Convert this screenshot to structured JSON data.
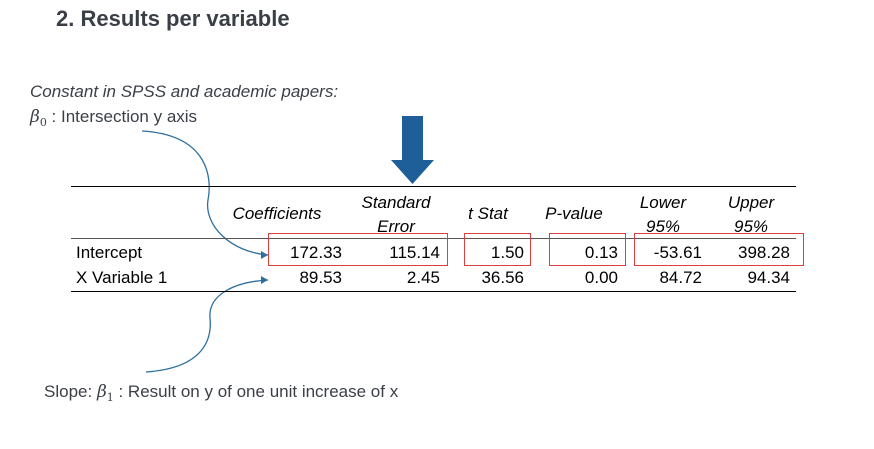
{
  "title": "2. Results per variable",
  "notes": {
    "constant": "Constant in SPSS and academic papers:",
    "beta0_symbol": "β",
    "beta0_sub": "0",
    "beta0_text": " : Intersection y axis",
    "slope_prefix": "Slope: ",
    "beta1_symbol": "β",
    "beta1_sub": "1",
    "slope_text": " : Result on y of one unit increase of x"
  },
  "table": {
    "headers": {
      "coefficients": "Coefficients",
      "std_error_1": "Standard",
      "std_error_2": "Error",
      "t_stat": "t Stat",
      "p_value": "P-value",
      "lower_1": "Lower",
      "lower_2": "95%",
      "upper_1": "Upper",
      "upper_2": "95%"
    },
    "rows": [
      {
        "label": "Intercept",
        "coefficients": "172.33",
        "std_error": "115.14",
        "t_stat": "1.50",
        "p_value": "0.13",
        "lower": "-53.61",
        "upper": "398.28"
      },
      {
        "label": "X Variable 1",
        "coefficients": "89.53",
        "std_error": "2.45",
        "t_stat": "36.56",
        "p_value": "0.00",
        "lower": "84.72",
        "upper": "94.34"
      }
    ]
  },
  "colors": {
    "title": "#3a3f47",
    "highlight_box": "#d94040",
    "arrow_blue": "#1f5f99",
    "curve_blue": "#2e6f9e"
  }
}
